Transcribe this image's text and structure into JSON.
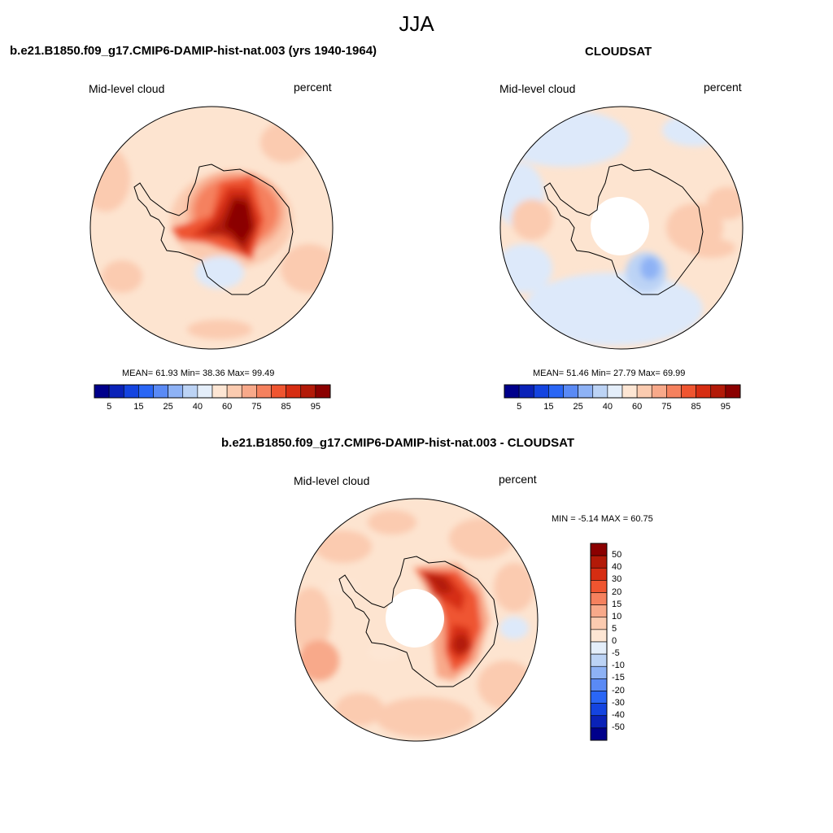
{
  "figure": {
    "season": "JJA"
  },
  "panels": [
    {
      "title": "b.e21.B1850.f09_g17.CMIP6-DAMIP-hist-nat.003 (yrs 1940-1964)",
      "left_label": "Mid-level cloud",
      "right_label": "percent",
      "stats": "MEAN=  61.93  Min=  38.36  Max=  99.49",
      "colorbar": {
        "colors": [
          "#00008b",
          "#0a22b8",
          "#1444e0",
          "#2a66f5",
          "#5a8af5",
          "#8eb2f5",
          "#bcd3f5",
          "#e4eefa",
          "#fde6d4",
          "#fbcbb0",
          "#f8a98a",
          "#f5815e",
          "#ef5530",
          "#d62d12",
          "#b31a08",
          "#8b0000"
        ],
        "ticks": [
          "5",
          "15",
          "25",
          "40",
          "60",
          "75",
          "85",
          "95"
        ]
      }
    },
    {
      "title": "CLOUDSAT",
      "left_label": "Mid-level cloud",
      "right_label": "percent",
      "stats": "MEAN=  51.46  Min=  27.79  Max=  69.99",
      "colorbar": {
        "colors": [
          "#00008b",
          "#0a22b8",
          "#1444e0",
          "#2a66f5",
          "#5a8af5",
          "#8eb2f5",
          "#bcd3f5",
          "#e4eefa",
          "#fde6d4",
          "#fbcbb0",
          "#f8a98a",
          "#f5815e",
          "#ef5530",
          "#d62d12",
          "#b31a08",
          "#8b0000"
        ],
        "ticks": [
          "5",
          "15",
          "25",
          "40",
          "60",
          "75",
          "85",
          "95"
        ]
      }
    },
    {
      "title": "b.e21.B1850.f09_g17.CMIP6-DAMIP-hist-nat.003 - CLOUDSAT",
      "left_label": "Mid-level cloud",
      "right_label": "percent",
      "stats": "MIN =  -5.14 MAX =  60.75",
      "colorbar": {
        "colors": [
          "#8b0000",
          "#b31a08",
          "#d62d12",
          "#ef5530",
          "#f5815e",
          "#f8a98a",
          "#fbcbb0",
          "#fde6d4",
          "#e4eefa",
          "#bcd3f5",
          "#8eb2f5",
          "#5a8af5",
          "#2a66f5",
          "#1444e0",
          "#0a22b8",
          "#00008b"
        ],
        "ticks": [
          "50",
          "40",
          "30",
          "20",
          "15",
          "10",
          "5",
          "0",
          "-5",
          "-10",
          "-15",
          "-20",
          "-30",
          "-40",
          "-50"
        ]
      }
    }
  ],
  "colors": {
    "ocean_light_orange": "#fde6d4",
    "light_blue": "#dde9fa",
    "dark_red": "#8b0000"
  }
}
